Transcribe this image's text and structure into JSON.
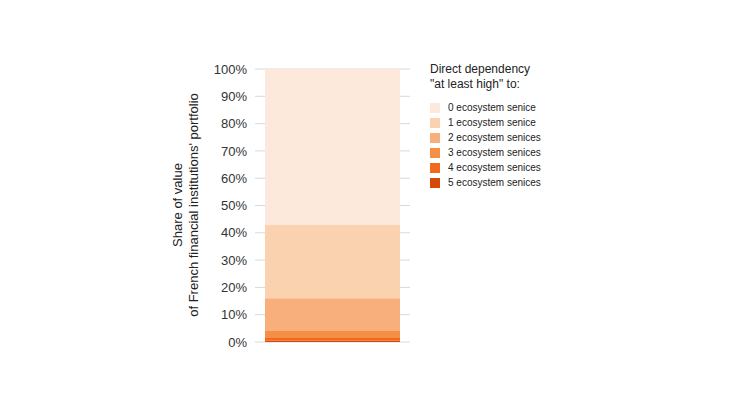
{
  "chart_data": {
    "type": "bar",
    "y_label": "Share of value\nof French financial institutions' portfolio",
    "legend_title": "Direct dependency\n\"at least high\" to:",
    "categories": [
      null
    ],
    "series": [
      {
        "name": "0 ecosystem senice",
        "color": "#fde9dc",
        "values": [
          57
        ]
      },
      {
        "name": "1 ecosystem senice",
        "color": "#fbd2b0",
        "values": [
          27
        ]
      },
      {
        "name": "2 ecosystem senices",
        "color": "#f9af7b",
        "values": [
          12
        ]
      },
      {
        "name": "3 ecosystem senices",
        "color": "#f68e48",
        "values": [
          2.5
        ]
      },
      {
        "name": "4 ecosystem senices",
        "color": "#ef6a1e",
        "values": [
          1
        ]
      },
      {
        "name": "5 ecosystem senices",
        "color": "#d44a0a",
        "values": [
          0.5
        ]
      }
    ],
    "ylim": [
      0,
      100
    ],
    "yticks": [
      {
        "value": 0,
        "label": "0%"
      },
      {
        "value": 10,
        "label": "10%"
      },
      {
        "value": 20,
        "label": "20%"
      },
      {
        "value": 30,
        "label": "30%"
      },
      {
        "value": 40,
        "label": "40%"
      },
      {
        "value": 50,
        "label": "50%"
      },
      {
        "value": 60,
        "label": "60%"
      },
      {
        "value": 70,
        "label": "70%"
      },
      {
        "value": 80,
        "label": "80%"
      },
      {
        "value": 90,
        "label": "90%"
      },
      {
        "value": 100,
        "label": "100%"
      }
    ],
    "stacked": true,
    "grid": true,
    "legend": "right"
  }
}
